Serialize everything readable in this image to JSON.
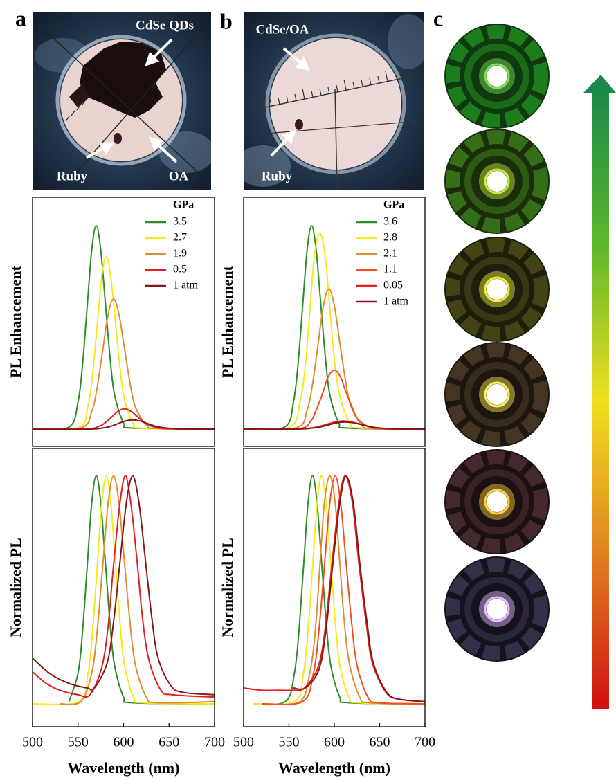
{
  "figure": {
    "panel_labels": [
      "a",
      "b",
      "c"
    ],
    "photo_a_labels": [
      "CdSe QDs",
      "Ruby",
      "OA"
    ],
    "photo_b_labels": [
      "CdSe/OA",
      "Ruby"
    ]
  },
  "chart_data": [
    {
      "type": "line",
      "ylabel": "PL Enhancement",
      "xlim": [
        500,
        700
      ],
      "ylim": [
        -0.085,
        1.14
      ],
      "legend_title": "GPa",
      "legend": "upper right",
      "series": [
        {
          "name": "3.5",
          "color": "#2a8c2a",
          "x": [
            500,
            540,
            550,
            555,
            560,
            565,
            570,
            575,
            580,
            585,
            590,
            600,
            610,
            700
          ],
          "values": [
            0,
            0.01,
            0.135,
            0.32,
            0.6,
            0.88,
            1,
            0.88,
            0.62,
            0.36,
            0.17,
            0.03,
            0.005,
            0
          ]
        },
        {
          "name": "2.7",
          "color": "#f4ea1a",
          "x": [
            500,
            551,
            561,
            566,
            571,
            576,
            581,
            586,
            591,
            596,
            601,
            611,
            621,
            700
          ],
          "values": [
            0,
            0.009,
            0.115,
            0.272,
            0.51,
            0.748,
            0.85,
            0.748,
            0.527,
            0.306,
            0.145,
            0.026,
            0.004,
            0
          ]
        },
        {
          "name": "1.9",
          "color": "#e08c30",
          "x": [
            500,
            553,
            565,
            571,
            577,
            583,
            589,
            595,
            601,
            607,
            613,
            625,
            637,
            700
          ],
          "values": [
            0,
            0.006,
            0.086,
            0.205,
            0.384,
            0.563,
            0.64,
            0.563,
            0.397,
            0.23,
            0.109,
            0.019,
            0.003,
            0
          ]
        },
        {
          "name": "0.5",
          "color": "#e02020",
          "x": [
            500,
            559,
            573,
            580,
            587,
            594,
            601,
            608,
            615,
            622,
            629,
            643,
            657,
            700
          ],
          "values": [
            0,
            0.001,
            0.014,
            0.032,
            0.06,
            0.088,
            0.1,
            0.088,
            0.062,
            0.036,
            0.017,
            0.003,
            0.001,
            0
          ]
        },
        {
          "name": "1 atm",
          "color": "#8b1515",
          "x": [
            500,
            562,
            578,
            586,
            594,
            602,
            610,
            618,
            626,
            634,
            642,
            658,
            674,
            700
          ],
          "values": [
            0,
            0,
            0.006,
            0.014,
            0.027,
            0.04,
            0.045,
            0.04,
            0.028,
            0.016,
            0.008,
            0.001,
            0,
            0
          ]
        }
      ]
    },
    {
      "type": "line",
      "ylabel": "PL Enhancement",
      "xlim": [
        500,
        700
      ],
      "ylim": [
        -0.085,
        1.14
      ],
      "legend_title": "GPa",
      "legend": "upper right",
      "series": [
        {
          "name": "3.6",
          "color": "#2a8c2a",
          "x": [
            500,
            545,
            555,
            560,
            565,
            570,
            575,
            580,
            585,
            590,
            595,
            605,
            615,
            700
          ],
          "values": [
            0,
            0.01,
            0.135,
            0.32,
            0.6,
            0.88,
            1,
            0.88,
            0.62,
            0.36,
            0.17,
            0.03,
            0.005,
            0
          ]
        },
        {
          "name": "2.8",
          "color": "#f4ea1a",
          "x": [
            500,
            551,
            562,
            568,
            573,
            578,
            584,
            590,
            595,
            600,
            606,
            617,
            628,
            700
          ],
          "values": [
            0,
            0.01,
            0.13,
            0.309,
            0.579,
            0.849,
            0.965,
            0.849,
            0.598,
            0.347,
            0.164,
            0.029,
            0.005,
            0
          ]
        },
        {
          "name": "2.1",
          "color": "#e08c30",
          "x": [
            500,
            558,
            570,
            576,
            582,
            588,
            594,
            600,
            606,
            612,
            618,
            630,
            642,
            700
          ],
          "values": [
            0,
            0.007,
            0.093,
            0.221,
            0.414,
            0.607,
            0.69,
            0.607,
            0.428,
            0.248,
            0.117,
            0.021,
            0.003,
            0
          ]
        },
        {
          "name": "1.1",
          "color": "#f05020",
          "x": [
            500,
            561,
            574,
            580,
            587,
            593,
            600,
            607,
            613,
            620,
            626,
            639,
            652,
            700
          ],
          "values": [
            0,
            0.003,
            0.039,
            0.093,
            0.174,
            0.255,
            0.29,
            0.255,
            0.18,
            0.104,
            0.049,
            0.009,
            0.001,
            0
          ]
        },
        {
          "name": "0.05",
          "color": "#e02020",
          "x": [
            500,
            556,
            574,
            583,
            592,
            601,
            610,
            619,
            628,
            637,
            646,
            664,
            682,
            700
          ],
          "values": [
            0,
            0,
            0.005,
            0.013,
            0.024,
            0.035,
            0.04,
            0.035,
            0.025,
            0.014,
            0.007,
            0.001,
            0,
            0
          ]
        },
        {
          "name": "1 atm",
          "color": "#8b1515",
          "x": [
            500,
            558,
            576,
            585,
            594,
            603,
            612,
            621,
            630,
            639,
            648,
            666,
            684,
            700
          ],
          "values": [
            0,
            0,
            0.005,
            0.011,
            0.021,
            0.031,
            0.035,
            0.031,
            0.022,
            0.013,
            0.006,
            0.001,
            0,
            0
          ]
        }
      ]
    },
    {
      "type": "line",
      "ylabel": "Normalized PL",
      "xlabel": "Wavelength (nm)",
      "xlim": [
        500,
        700
      ],
      "xticks": [
        500,
        550,
        600,
        650,
        700
      ],
      "ylim": [
        -0.1,
        1.12
      ],
      "series": [
        {
          "color": "#2a8c2a",
          "x": [
            540,
            550,
            555,
            560,
            565,
            570,
            575,
            580,
            585,
            590,
            600,
            610,
            700
          ],
          "values": [
            0.01,
            0.135,
            0.32,
            0.6,
            0.88,
            1,
            0.88,
            0.62,
            0.36,
            0.17,
            0.03,
            0.005,
            0
          ]
        },
        {
          "color": "#f4ea1a",
          "x": [
            500,
            551,
            561,
            566,
            571,
            576,
            581,
            586,
            591,
            596,
            601,
            611,
            621,
            700
          ],
          "values": [
            0,
            0.01,
            0.135,
            0.32,
            0.6,
            0.88,
            1,
            0.88,
            0.62,
            0.36,
            0.17,
            0.03,
            0.005,
            0
          ]
        },
        {
          "color": "#e08c30",
          "x": [
            530,
            553,
            565,
            571,
            577,
            583,
            589,
            595,
            601,
            607,
            613,
            625,
            637,
            700
          ],
          "values": [
            0,
            0.01,
            0.135,
            0.32,
            0.6,
            0.88,
            1,
            0.88,
            0.62,
            0.36,
            0.17,
            0.03,
            0.005,
            0.01
          ]
        },
        {
          "color": "#e02020",
          "x": [
            500,
            515,
            530,
            550,
            563,
            576,
            583,
            589,
            596,
            602,
            608,
            615,
            621,
            628,
            641,
            654,
            700
          ],
          "values": [
            0.14,
            0.09,
            0.06,
            0.04,
            0.04,
            0.16,
            0.34,
            0.61,
            0.88,
            1,
            0.88,
            0.62,
            0.37,
            0.19,
            0.06,
            0.04,
            0.03
          ]
        },
        {
          "color": "#8b1515",
          "x": [
            500,
            520,
            540,
            560,
            568,
            582,
            589,
            596,
            603,
            610,
            617,
            624,
            631,
            638,
            652,
            666,
            700
          ],
          "values": [
            0.2,
            0.13,
            0.09,
            0.07,
            0.07,
            0.18,
            0.36,
            0.62,
            0.88,
            1,
            0.88,
            0.63,
            0.38,
            0.2,
            0.08,
            0.05,
            0.04
          ]
        }
      ]
    },
    {
      "type": "line",
      "ylabel": "Normalized PL",
      "xlabel": "Wavelength (nm)",
      "xlim": [
        500,
        700
      ],
      "xticks": [
        500,
        550,
        600,
        650,
        700
      ],
      "ylim": [
        -0.1,
        1.12
      ],
      "series": [
        {
          "color": "#2a8c2a",
          "x": [
            510,
            546,
            556,
            561,
            566,
            571,
            576,
            581,
            586,
            591,
            596,
            606,
            616,
            700
          ],
          "values": [
            0,
            0.01,
            0.135,
            0.32,
            0.6,
            0.88,
            1,
            0.88,
            0.62,
            0.36,
            0.17,
            0.03,
            0.005,
            0
          ]
        },
        {
          "color": "#f4ea1a",
          "x": [
            510,
            556,
            566,
            571,
            576,
            581,
            586,
            591,
            596,
            601,
            606,
            616,
            626,
            700
          ],
          "values": [
            0,
            0.01,
            0.135,
            0.32,
            0.6,
            0.88,
            1,
            0.88,
            0.62,
            0.36,
            0.17,
            0.03,
            0.005,
            0
          ]
        },
        {
          "color": "#e08c30",
          "x": [
            525,
            562,
            573,
            579,
            584,
            589,
            595,
            601,
            606,
            611,
            617,
            628,
            639,
            700
          ],
          "values": [
            0,
            0.01,
            0.135,
            0.32,
            0.6,
            0.88,
            1,
            0.88,
            0.62,
            0.36,
            0.17,
            0.03,
            0.005,
            0
          ]
        },
        {
          "color": "#f05020",
          "x": [
            520,
            565,
            577,
            583,
            589,
            595,
            601,
            607,
            613,
            619,
            625,
            637,
            649,
            700
          ],
          "values": [
            0,
            0.01,
            0.135,
            0.32,
            0.6,
            0.88,
            1,
            0.88,
            0.62,
            0.36,
            0.17,
            0.03,
            0.005,
            0
          ]
        },
        {
          "color": "#e02020",
          "x": [
            500,
            520,
            540,
            555,
            567,
            582,
            590,
            597,
            605,
            612,
            620,
            627,
            635,
            642,
            657,
            672,
            700
          ],
          "values": [
            0.07,
            0.06,
            0.06,
            0.06,
            0.07,
            0.16,
            0.33,
            0.6,
            0.88,
            1,
            0.88,
            0.62,
            0.36,
            0.18,
            0.05,
            0.02,
            0.01
          ]
        },
        {
          "color": "#8b1515",
          "x": [
            555,
            568,
            583,
            591,
            598,
            606,
            613,
            621,
            628,
            636,
            643,
            658,
            673,
            700
          ],
          "values": [
            0.07,
            0.07,
            0.15,
            0.33,
            0.6,
            0.88,
            1,
            0.88,
            0.62,
            0.36,
            0.18,
            0.05,
            0.02,
            0.01
          ]
        }
      ]
    }
  ]
}
